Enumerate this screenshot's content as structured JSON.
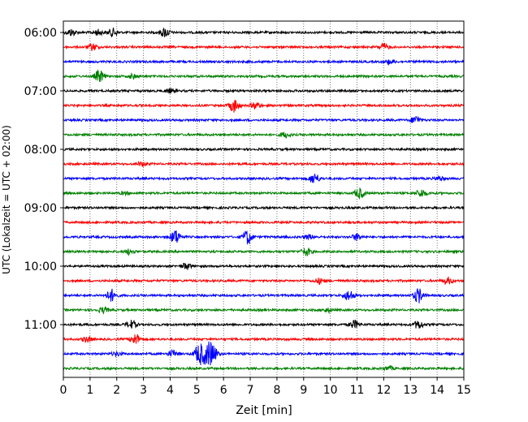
{
  "chart_data": {
    "type": "line",
    "title": "",
    "xlabel": "Zeit  [min]",
    "ylabel": "UTC (Lokalzeit = UTC + 02:00)",
    "xlim": [
      0,
      15
    ],
    "x_ticks": [
      "0",
      "1",
      "2",
      "3",
      "4",
      "5",
      "6",
      "7",
      "8",
      "9",
      "10",
      "11",
      "12",
      "13",
      "14",
      "15"
    ],
    "y_tick_labels": [
      "06:00",
      "07:00",
      "08:00",
      "09:00",
      "10:00",
      "11:00"
    ],
    "grid": {
      "x": true,
      "y": false
    },
    "trace_interval_minutes": 15,
    "trace_colors": [
      "#000000",
      "#ff0000",
      "#0000ff",
      "#008000"
    ],
    "series": [
      {
        "start": "06:00",
        "events": [
          [
            0.3,
            0.5
          ],
          [
            1.3,
            0.4
          ],
          [
            1.85,
            0.6
          ],
          [
            3.8,
            0.7
          ]
        ]
      },
      {
        "start": "06:15",
        "events": [
          [
            1.1,
            0.5
          ],
          [
            12.0,
            0.5
          ]
        ]
      },
      {
        "start": "06:30",
        "events": [
          [
            12.2,
            0.3
          ]
        ]
      },
      {
        "start": "06:45",
        "events": [
          [
            1.35,
            0.9
          ],
          [
            2.6,
            0.3
          ]
        ]
      },
      {
        "start": "07:00",
        "events": [
          [
            4.0,
            0.3
          ]
        ]
      },
      {
        "start": "07:15",
        "events": [
          [
            6.4,
            1.0
          ],
          [
            7.2,
            0.5
          ]
        ]
      },
      {
        "start": "07:30",
        "events": [
          [
            13.2,
            0.6
          ]
        ]
      },
      {
        "start": "07:45",
        "events": [
          [
            8.3,
            0.4
          ]
        ]
      },
      {
        "start": "08:00",
        "events": []
      },
      {
        "start": "08:15",
        "events": [
          [
            2.95,
            0.3
          ]
        ]
      },
      {
        "start": "08:30",
        "events": [
          [
            9.4,
            0.8
          ],
          [
            14.1,
            0.3
          ]
        ]
      },
      {
        "start": "08:45",
        "events": [
          [
            11.1,
            0.8
          ],
          [
            13.4,
            0.6
          ],
          [
            2.3,
            0.2
          ]
        ]
      },
      {
        "start": "09:00",
        "events": []
      },
      {
        "start": "09:15",
        "events": []
      },
      {
        "start": "09:30",
        "events": [
          [
            4.2,
            1.1
          ],
          [
            6.9,
            1.1
          ],
          [
            11.0,
            0.5
          ],
          [
            9.2,
            0.3
          ]
        ]
      },
      {
        "start": "09:45",
        "events": [
          [
            2.5,
            0.4
          ],
          [
            9.1,
            0.6
          ]
        ]
      },
      {
        "start": "10:00",
        "events": [
          [
            4.6,
            0.5
          ]
        ]
      },
      {
        "start": "10:15",
        "events": [
          [
            9.6,
            0.4
          ],
          [
            14.4,
            0.5
          ]
        ]
      },
      {
        "start": "10:30",
        "events": [
          [
            1.8,
            0.9
          ],
          [
            10.7,
            0.8
          ],
          [
            13.3,
            1.1
          ]
        ]
      },
      {
        "start": "10:45",
        "events": [
          [
            1.5,
            0.4
          ],
          [
            9.9,
            0.3
          ]
        ]
      },
      {
        "start": "11:00",
        "events": [
          [
            2.55,
            0.6
          ],
          [
            10.9,
            0.6
          ],
          [
            13.3,
            0.6
          ]
        ]
      },
      {
        "start": "11:15",
        "events": [
          [
            2.7,
            0.8
          ],
          [
            0.9,
            0.4
          ]
        ]
      },
      {
        "start": "11:30",
        "events": [
          [
            2.0,
            0.3
          ],
          [
            4.1,
            0.5
          ],
          [
            5.1,
            1.6
          ],
          [
            5.4,
            1.4
          ],
          [
            5.6,
            1.2
          ]
        ]
      },
      {
        "start": "11:45",
        "events": [
          [
            12.2,
            0.3
          ]
        ]
      }
    ]
  }
}
